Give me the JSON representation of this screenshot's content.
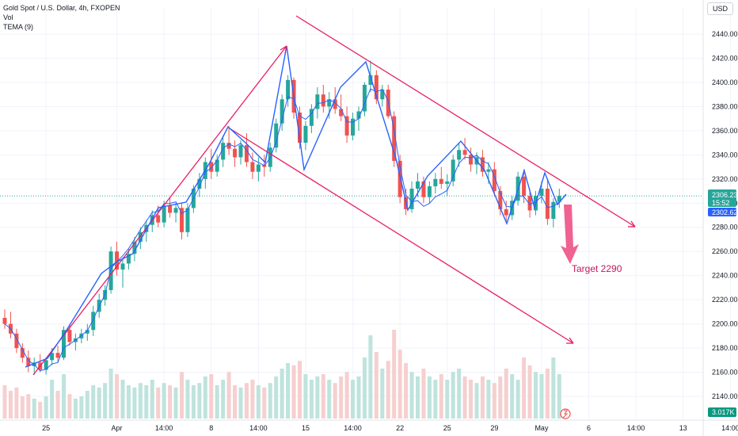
{
  "legend": {
    "title": "Gold Spot / U.S. Dollar, 4h, FXOPEN",
    "vol": "Vol",
    "tema": "TEMA (9)"
  },
  "currency_button": "USD",
  "colors": {
    "up": "#26a69a",
    "down": "#ef5350",
    "volume_up": "#bfe3dd",
    "volume_down": "#f6cfcf",
    "tema": "#2962ff",
    "drawing": "#e91e63",
    "target_arrow": "#f06292",
    "grid": "#f0f3fa",
    "price_line": "#26a69a",
    "current_badge": "#26a69a",
    "tema_badge": "#2962ff",
    "vol_badge": "#089981"
  },
  "price_badges": {
    "current": "2306.23",
    "countdown": "15:52",
    "tema": "2302.62",
    "volume": "3.017K"
  },
  "target_label": "Target 2290",
  "chart_data": {
    "type": "candlestick",
    "y_axis": {
      "min": 2120,
      "max": 2450,
      "ticks": [
        2140,
        2160,
        2180,
        2200,
        2220,
        2240,
        2260,
        2280,
        2300,
        2320,
        2340,
        2360,
        2380,
        2400,
        2420,
        2440
      ]
    },
    "y_tick_labels": [
      "2140.00",
      "2160.00",
      "2180.00",
      "2200.00",
      "2220.00",
      "2240.00",
      "2260.00",
      "2280.00",
      "2300.00",
      "2320.00",
      "2340.00",
      "2360.00",
      "2380.00",
      "2400.00",
      "2420.00",
      "2440.00"
    ],
    "x_ticks": [
      {
        "i": 7,
        "label": "25"
      },
      {
        "i": 19,
        "label": "Apr"
      },
      {
        "i": 27,
        "label": "14:00"
      },
      {
        "i": 35,
        "label": "8"
      },
      {
        "i": 43,
        "label": "14:00"
      },
      {
        "i": 51,
        "label": "15"
      },
      {
        "i": 59,
        "label": "14:00"
      },
      {
        "i": 67,
        "label": "22"
      },
      {
        "i": 75,
        "label": "25"
      },
      {
        "i": 83,
        "label": "29"
      },
      {
        "i": 91,
        "label": "May"
      },
      {
        "i": 99,
        "label": "6"
      },
      {
        "i": 107,
        "label": "14:00"
      },
      {
        "i": 115,
        "label": "13"
      },
      {
        "i": 123,
        "label": "14:00"
      }
    ],
    "candles": [
      [
        2205,
        2212,
        2196,
        2200
      ],
      [
        2200,
        2210,
        2188,
        2192
      ],
      [
        2192,
        2196,
        2176,
        2180
      ],
      [
        2180,
        2184,
        2168,
        2172
      ],
      [
        2172,
        2178,
        2160,
        2165
      ],
      [
        2165,
        2172,
        2158,
        2168
      ],
      [
        2168,
        2175,
        2160,
        2162
      ],
      [
        2162,
        2172,
        2158,
        2170
      ],
      [
        2170,
        2180,
        2166,
        2176
      ],
      [
        2176,
        2182,
        2168,
        2172
      ],
      [
        2172,
        2198,
        2170,
        2195
      ],
      [
        2195,
        2200,
        2182,
        2185
      ],
      [
        2185,
        2192,
        2178,
        2188
      ],
      [
        2188,
        2196,
        2184,
        2192
      ],
      [
        2192,
        2200,
        2186,
        2195
      ],
      [
        2195,
        2215,
        2190,
        2210
      ],
      [
        2210,
        2225,
        2205,
        2220
      ],
      [
        2220,
        2232,
        2215,
        2228
      ],
      [
        2228,
        2264,
        2225,
        2260
      ],
      [
        2260,
        2268,
        2240,
        2245
      ],
      [
        2245,
        2255,
        2230,
        2250
      ],
      [
        2250,
        2262,
        2245,
        2258
      ],
      [
        2258,
        2272,
        2252,
        2268
      ],
      [
        2268,
        2280,
        2262,
        2276
      ],
      [
        2276,
        2286,
        2268,
        2282
      ],
      [
        2282,
        2294,
        2276,
        2290
      ],
      [
        2290,
        2298,
        2280,
        2284
      ],
      [
        2284,
        2302,
        2280,
        2298
      ],
      [
        2298,
        2305,
        2288,
        2292
      ],
      [
        2292,
        2300,
        2284,
        2296
      ],
      [
        2296,
        2300,
        2270,
        2276
      ],
      [
        2276,
        2300,
        2272,
        2296
      ],
      [
        2296,
        2315,
        2292,
        2312
      ],
      [
        2312,
        2325,
        2305,
        2320
      ],
      [
        2320,
        2338,
        2312,
        2334
      ],
      [
        2334,
        2345,
        2320,
        2326
      ],
      [
        2326,
        2340,
        2322,
        2336
      ],
      [
        2336,
        2356,
        2330,
        2350
      ],
      [
        2350,
        2364,
        2340,
        2345
      ],
      [
        2345,
        2352,
        2330,
        2338
      ],
      [
        2338,
        2352,
        2332,
        2348
      ],
      [
        2348,
        2358,
        2330,
        2334
      ],
      [
        2334,
        2342,
        2320,
        2326
      ],
      [
        2326,
        2338,
        2318,
        2332
      ],
      [
        2332,
        2340,
        2322,
        2330
      ],
      [
        2330,
        2350,
        2326,
        2346
      ],
      [
        2346,
        2370,
        2342,
        2366
      ],
      [
        2366,
        2390,
        2360,
        2386
      ],
      [
        2386,
        2406,
        2380,
        2402
      ],
      [
        2402,
        2404,
        2370,
        2375
      ],
      [
        2375,
        2380,
        2345,
        2350
      ],
      [
        2350,
        2368,
        2344,
        2364
      ],
      [
        2364,
        2382,
        2358,
        2378
      ],
      [
        2378,
        2396,
        2370,
        2390
      ],
      [
        2390,
        2398,
        2375,
        2380
      ],
      [
        2380,
        2392,
        2370,
        2386
      ],
      [
        2386,
        2396,
        2374,
        2378
      ],
      [
        2378,
        2390,
        2368,
        2372
      ],
      [
        2372,
        2380,
        2350,
        2356
      ],
      [
        2356,
        2375,
        2352,
        2370
      ],
      [
        2370,
        2380,
        2360,
        2376
      ],
      [
        2376,
        2400,
        2372,
        2398
      ],
      [
        2398,
        2418,
        2392,
        2406
      ],
      [
        2406,
        2410,
        2382,
        2386
      ],
      [
        2386,
        2398,
        2380,
        2394
      ],
      [
        2394,
        2398,
        2370,
        2372
      ],
      [
        2372,
        2376,
        2330,
        2335
      ],
      [
        2335,
        2340,
        2300,
        2305
      ],
      [
        2305,
        2312,
        2290,
        2295
      ],
      [
        2295,
        2318,
        2292,
        2312
      ],
      [
        2312,
        2325,
        2305,
        2318
      ],
      [
        2318,
        2322,
        2300,
        2305
      ],
      [
        2305,
        2318,
        2300,
        2314
      ],
      [
        2314,
        2325,
        2308,
        2320
      ],
      [
        2320,
        2330,
        2312,
        2316
      ],
      [
        2316,
        2324,
        2306,
        2318
      ],
      [
        2318,
        2340,
        2314,
        2336
      ],
      [
        2336,
        2350,
        2330,
        2344
      ],
      [
        2344,
        2354,
        2336,
        2340
      ],
      [
        2340,
        2346,
        2326,
        2332
      ],
      [
        2332,
        2342,
        2324,
        2338
      ],
      [
        2338,
        2344,
        2322,
        2326
      ],
      [
        2326,
        2334,
        2316,
        2328
      ],
      [
        2328,
        2334,
        2306,
        2310
      ],
      [
        2310,
        2314,
        2290,
        2295
      ],
      [
        2295,
        2302,
        2284,
        2290
      ],
      [
        2290,
        2306,
        2286,
        2302
      ],
      [
        2302,
        2326,
        2298,
        2322
      ],
      [
        2322,
        2328,
        2300,
        2306
      ],
      [
        2306,
        2312,
        2288,
        2294
      ],
      [
        2294,
        2310,
        2290,
        2306
      ],
      [
        2306,
        2318,
        2300,
        2312
      ],
      [
        2312,
        2320,
        2282,
        2287
      ],
      [
        2287,
        2304,
        2280,
        2301
      ],
      [
        2301,
        2312,
        2296,
        2306
      ]
    ],
    "volumes": [
      0.3,
      0.25,
      0.28,
      0.2,
      0.22,
      0.18,
      0.15,
      0.2,
      0.35,
      0.25,
      0.4,
      0.22,
      0.18,
      0.2,
      0.25,
      0.3,
      0.28,
      0.32,
      0.45,
      0.4,
      0.35,
      0.3,
      0.28,
      0.32,
      0.3,
      0.35,
      0.28,
      0.32,
      0.3,
      0.28,
      0.42,
      0.35,
      0.3,
      0.32,
      0.38,
      0.4,
      0.3,
      0.35,
      0.42,
      0.3,
      0.28,
      0.32,
      0.35,
      0.3,
      0.28,
      0.32,
      0.38,
      0.45,
      0.5,
      0.48,
      0.52,
      0.4,
      0.35,
      0.38,
      0.4,
      0.35,
      0.32,
      0.38,
      0.42,
      0.35,
      0.38,
      0.55,
      0.75,
      0.6,
      0.45,
      0.52,
      0.8,
      0.62,
      0.5,
      0.42,
      0.38,
      0.45,
      0.38,
      0.35,
      0.4,
      0.35,
      0.42,
      0.45,
      0.38,
      0.35,
      0.32,
      0.38,
      0.35,
      0.32,
      0.38,
      0.45,
      0.4,
      0.35,
      0.55,
      0.48,
      0.42,
      0.4,
      0.45,
      0.55,
      0.4,
      0.32
    ],
    "tema": "TEMA (9)"
  }
}
